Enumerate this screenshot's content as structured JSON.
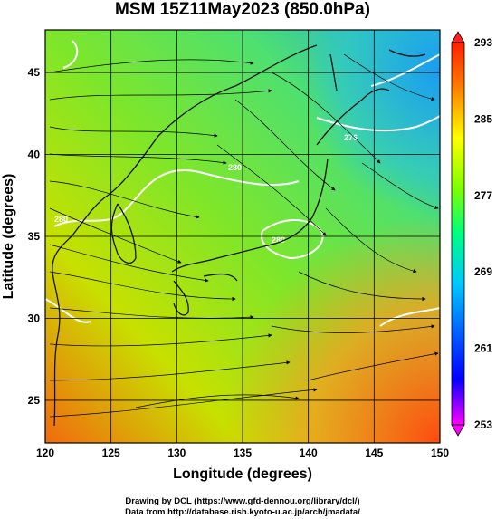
{
  "title": "MSM 15Z11May2023 (850.0hPa)",
  "x_axis": {
    "label": "Longitude (degrees)",
    "ticks": [
      "120",
      "125",
      "130",
      "135",
      "140",
      "145",
      "150"
    ],
    "range": [
      120,
      150
    ]
  },
  "y_axis": {
    "label": "Latitude  (degrees)",
    "ticks": [
      "25",
      "30",
      "35",
      "40",
      "45"
    ],
    "range": [
      22.4,
      47.6
    ]
  },
  "colorbar": {
    "ticks": [
      "293",
      "285",
      "277",
      "269",
      "261",
      "253"
    ],
    "range": [
      253,
      293
    ],
    "colors": [
      "#ff00ff",
      "#0000ff",
      "#00c8ff",
      "#00ff80",
      "#80ff00",
      "#ffff00",
      "#ff8000",
      "#ff2000"
    ]
  },
  "contour_labels": [
    "280",
    "276",
    "280",
    "280"
  ],
  "footer": {
    "line1": "Drawing by DCL (https://www.gfd-dennou.org/library/dcl/)",
    "line2": "Data from http://database.rish.kyoto-u.ac.jp/arch/jmadata/"
  }
}
